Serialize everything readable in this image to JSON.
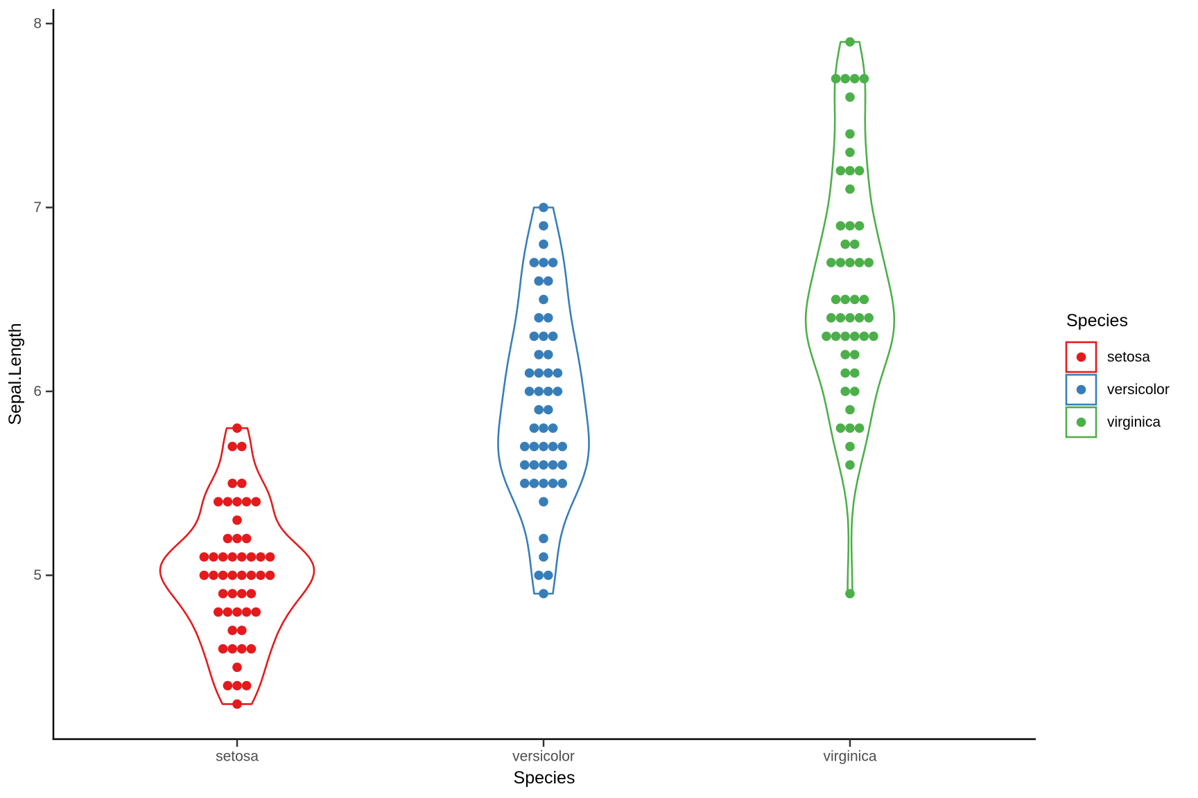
{
  "chart_data": {
    "type": "violin",
    "subtype": "violin-with-centered-dotplot",
    "title": "",
    "xlabel": "Species",
    "ylabel": "Sepal.Length",
    "categories": [
      "setosa",
      "versicolor",
      "virginica"
    ],
    "x_tick_labels": [
      "setosa",
      "versicolor",
      "virginica"
    ],
    "y_tick_labels": [
      "5",
      "6",
      "7",
      "8"
    ],
    "y_ticks": [
      5,
      6,
      7,
      8
    ],
    "ylim": [
      4.11,
      8.11
    ],
    "grid": "off",
    "background": "#ffffff",
    "legend": {
      "title": "Species",
      "position": "right",
      "items": [
        {
          "label": "setosa",
          "color": "#E41A1C"
        },
        {
          "label": "versicolor",
          "color": "#377EB8"
        },
        {
          "label": "virginica",
          "color": "#4DAF4A"
        }
      ]
    },
    "series": [
      {
        "name": "setosa",
        "color": "#E41A1C",
        "values": [
          5.1,
          4.9,
          4.7,
          4.6,
          5.0,
          5.4,
          4.6,
          5.0,
          4.4,
          4.9,
          5.4,
          4.8,
          4.8,
          4.3,
          5.8,
          5.7,
          5.4,
          5.1,
          5.7,
          5.1,
          5.4,
          5.1,
          4.6,
          5.1,
          4.8,
          5.0,
          5.0,
          5.2,
          5.2,
          4.7,
          4.8,
          5.4,
          5.2,
          5.5,
          4.9,
          5.0,
          5.5,
          4.9,
          4.4,
          5.1,
          5.0,
          4.5,
          4.4,
          5.0,
          5.1,
          4.8,
          5.1,
          4.6,
          5.3,
          5.0
        ]
      },
      {
        "name": "versicolor",
        "color": "#377EB8",
        "values": [
          7.0,
          6.4,
          6.9,
          5.5,
          6.5,
          5.7,
          6.3,
          4.9,
          6.6,
          5.2,
          5.0,
          5.9,
          6.0,
          6.1,
          5.6,
          6.7,
          5.6,
          5.8,
          6.2,
          5.6,
          5.9,
          6.1,
          6.3,
          6.1,
          6.4,
          6.6,
          6.8,
          6.7,
          6.0,
          5.7,
          5.5,
          5.5,
          5.8,
          6.0,
          5.4,
          6.0,
          6.7,
          6.3,
          5.6,
          5.5,
          5.5,
          6.1,
          5.8,
          5.0,
          5.6,
          5.7,
          5.7,
          6.2,
          5.1,
          5.7
        ]
      },
      {
        "name": "virginica",
        "color": "#4DAF4A",
        "values": [
          6.3,
          5.8,
          7.1,
          6.3,
          6.5,
          7.6,
          4.9,
          7.3,
          6.7,
          7.2,
          6.5,
          6.4,
          6.8,
          5.7,
          5.8,
          6.4,
          6.5,
          7.7,
          7.7,
          6.0,
          6.9,
          5.6,
          7.7,
          6.3,
          6.7,
          7.2,
          6.2,
          6.1,
          6.4,
          7.2,
          7.4,
          7.9,
          6.4,
          6.3,
          6.1,
          7.7,
          6.3,
          6.4,
          6.0,
          6.9,
          6.7,
          6.9,
          5.8,
          6.8,
          6.7,
          6.7,
          6.3,
          6.5,
          6.2,
          5.9
        ]
      }
    ]
  }
}
